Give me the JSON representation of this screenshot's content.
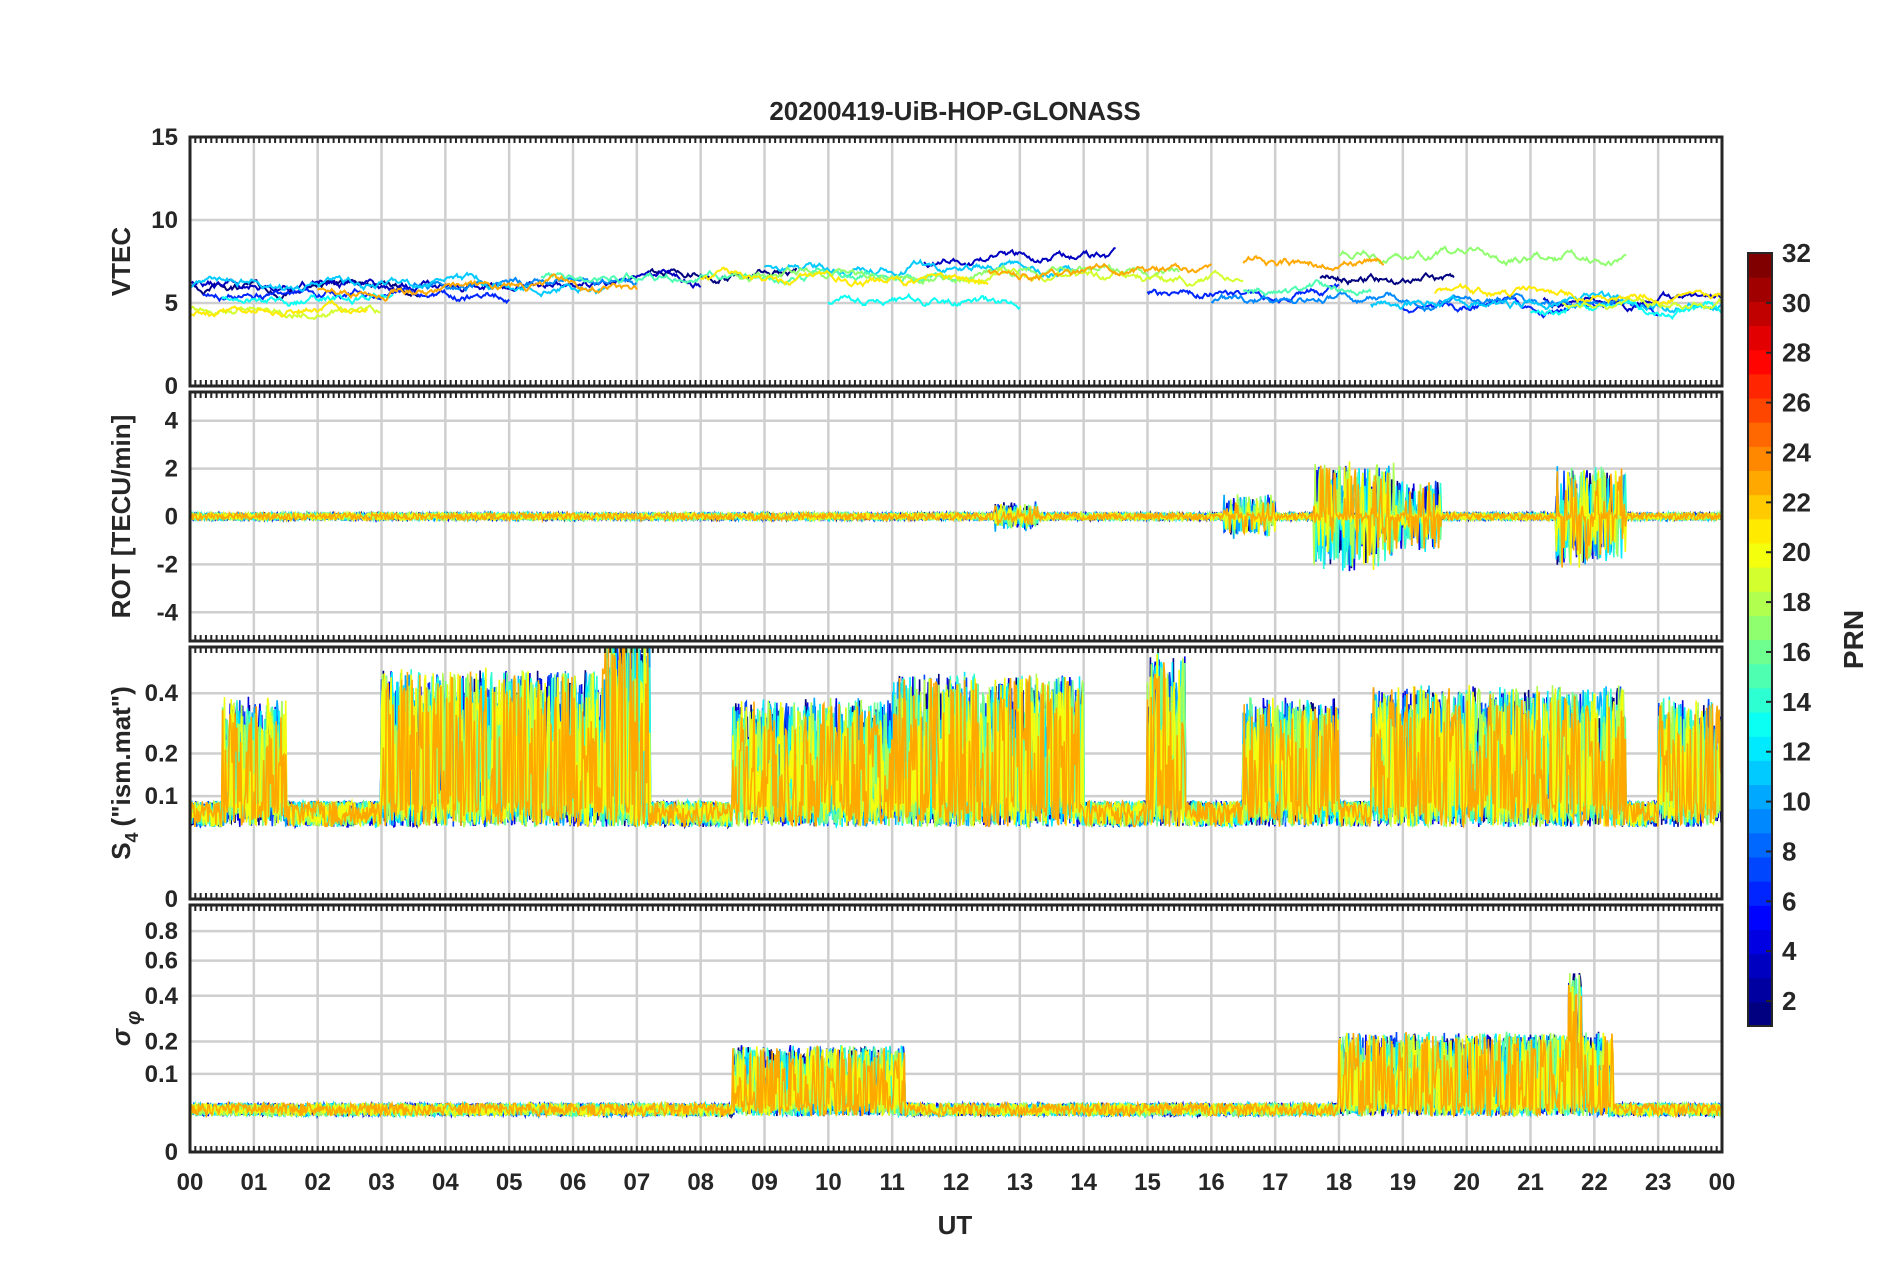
{
  "chart_data": {
    "type": "line",
    "title": "20200419-UiB-HOP-GLONASS",
    "xlabel": "UT",
    "x_tick_labels": [
      "00",
      "01",
      "02",
      "03",
      "04",
      "05",
      "06",
      "07",
      "08",
      "09",
      "10",
      "11",
      "12",
      "13",
      "14",
      "15",
      "16",
      "17",
      "18",
      "19",
      "20",
      "21",
      "22",
      "23",
      "00"
    ],
    "xlim": [
      0,
      24
    ],
    "grid": true,
    "panels": [
      {
        "id": "vtec",
        "ylabel": "VTEC",
        "ylim": [
          0,
          15
        ],
        "yticks": [
          0,
          5,
          10,
          15
        ],
        "ytick_labels": [
          "0",
          "5",
          "10",
          "15"
        ],
        "base_level": 5.8,
        "series": [
          {
            "prn": 1,
            "segments": [
              [
                0,
                3.6,
                5.9
              ],
              [
                7.2,
                9.5,
                7.0
              ],
              [
                17.7,
                19.8,
                6.5
              ]
            ]
          },
          {
            "prn": 3,
            "segments": [
              [
                0,
                8.0,
                6.2
              ],
              [
                11.5,
                14.5,
                7.6
              ],
              [
                21.2,
                24,
                5.2
              ]
            ]
          },
          {
            "prn": 6,
            "segments": [
              [
                0.2,
                5.0,
                5.5
              ],
              [
                15.0,
                18.0,
                5.6
              ],
              [
                19.0,
                23.0,
                4.8
              ]
            ]
          },
          {
            "prn": 9,
            "segments": [
              [
                3.5,
                7.0,
                6.1
              ],
              [
                16.0,
                22.5,
                5.2
              ]
            ]
          },
          {
            "prn": 11,
            "segments": [
              [
                0,
                6.5,
                6.0
              ],
              [
                9.0,
                14.0,
                7.2
              ],
              [
                18.5,
                24,
                5.0
              ]
            ]
          },
          {
            "prn": 13,
            "segments": [
              [
                0.5,
                3.2,
                5.3
              ],
              [
                10.0,
                13.0,
                5.0
              ],
              [
                21.0,
                24,
                4.5
              ]
            ]
          },
          {
            "prn": 15,
            "segments": [
              [
                5.5,
                12.0,
                6.6
              ],
              [
                16.5,
                18.5,
                5.8
              ]
            ]
          },
          {
            "prn": 17,
            "segments": [
              [
                8.5,
                15.5,
                6.8
              ],
              [
                18.0,
                22.5,
                7.8
              ]
            ]
          },
          {
            "prn": 19,
            "segments": [
              [
                0,
                3.0,
                4.8
              ],
              [
                12.0,
                16.5,
                6.5
              ],
              [
                21.5,
                24,
                5.0
              ]
            ]
          },
          {
            "prn": 21,
            "segments": [
              [
                0,
                2.8,
                4.5
              ],
              [
                8.0,
                12.5,
                6.3
              ],
              [
                19.5,
                24,
                5.5
              ]
            ]
          },
          {
            "prn": 23,
            "segments": [
              [
                2.0,
                7.0,
                5.9
              ],
              [
                12.5,
                16.0,
                6.9
              ],
              [
                16.5,
                18.7,
                7.5
              ]
            ]
          }
        ]
      },
      {
        "id": "rot",
        "ylabel": "ROT [TECU/min]",
        "ylim": [
          -5.2,
          5.2
        ],
        "yticks": [
          -4,
          -2,
          0,
          2,
          4
        ],
        "ytick_labels": [
          "-4",
          "-2",
          "0",
          "2",
          "4"
        ],
        "base_level": 0,
        "noise": 0.15,
        "bursts": [
          [
            12.6,
            13.3,
            0.5
          ],
          [
            16.2,
            17.0,
            0.8
          ],
          [
            17.6,
            18.9,
            2.2
          ],
          [
            18.9,
            19.6,
            1.4
          ],
          [
            21.4,
            22.5,
            2.0
          ]
        ]
      },
      {
        "id": "s4",
        "ylabel": "S4 (\"ism.mat\")",
        "ylim": [
          0,
          0.6
        ],
        "yticks": [
          0,
          0.1,
          0.2,
          0.4
        ],
        "ytick_labels": [
          "0",
          "0.1",
          "0.2",
          "0.4"
        ],
        "scale": "sqrt",
        "base_level": 0.07,
        "bursts": [
          [
            0.5,
            1.5,
            0.3
          ],
          [
            3.0,
            6.5,
            0.42
          ],
          [
            6.5,
            7.2,
            0.6
          ],
          [
            8.5,
            11.0,
            0.3
          ],
          [
            11.0,
            14.0,
            0.4
          ],
          [
            15.0,
            15.6,
            0.5
          ],
          [
            16.5,
            18.0,
            0.3
          ],
          [
            18.5,
            22.5,
            0.35
          ],
          [
            23.0,
            24,
            0.3
          ]
        ]
      },
      {
        "id": "sigma",
        "ylabel": "σφ",
        "ylim": [
          0,
          1.0
        ],
        "yticks": [
          0,
          0.1,
          0.2,
          0.4,
          0.6,
          0.8
        ],
        "ytick_labels": [
          "0",
          "0.1",
          "0.2",
          "0.4",
          "0.6",
          "0.8"
        ],
        "scale": "sqrt",
        "base_level": 0.03,
        "bursts": [
          [
            8.5,
            11.2,
            0.15
          ],
          [
            18.0,
            22.3,
            0.2
          ],
          [
            21.6,
            21.8,
            0.5
          ]
        ]
      }
    ],
    "colorbar": {
      "label": "PRN",
      "colormap": "jet",
      "range": [
        1,
        32
      ],
      "tick_values": [
        2,
        4,
        6,
        8,
        10,
        12,
        14,
        16,
        18,
        20,
        22,
        24,
        26,
        28,
        30,
        32
      ],
      "tick_labels": [
        "2",
        "4",
        "6",
        "8",
        "10",
        "12",
        "14",
        "16",
        "18",
        "20",
        "22",
        "24",
        "26",
        "28",
        "30",
        "32"
      ],
      "levels": 32
    }
  }
}
